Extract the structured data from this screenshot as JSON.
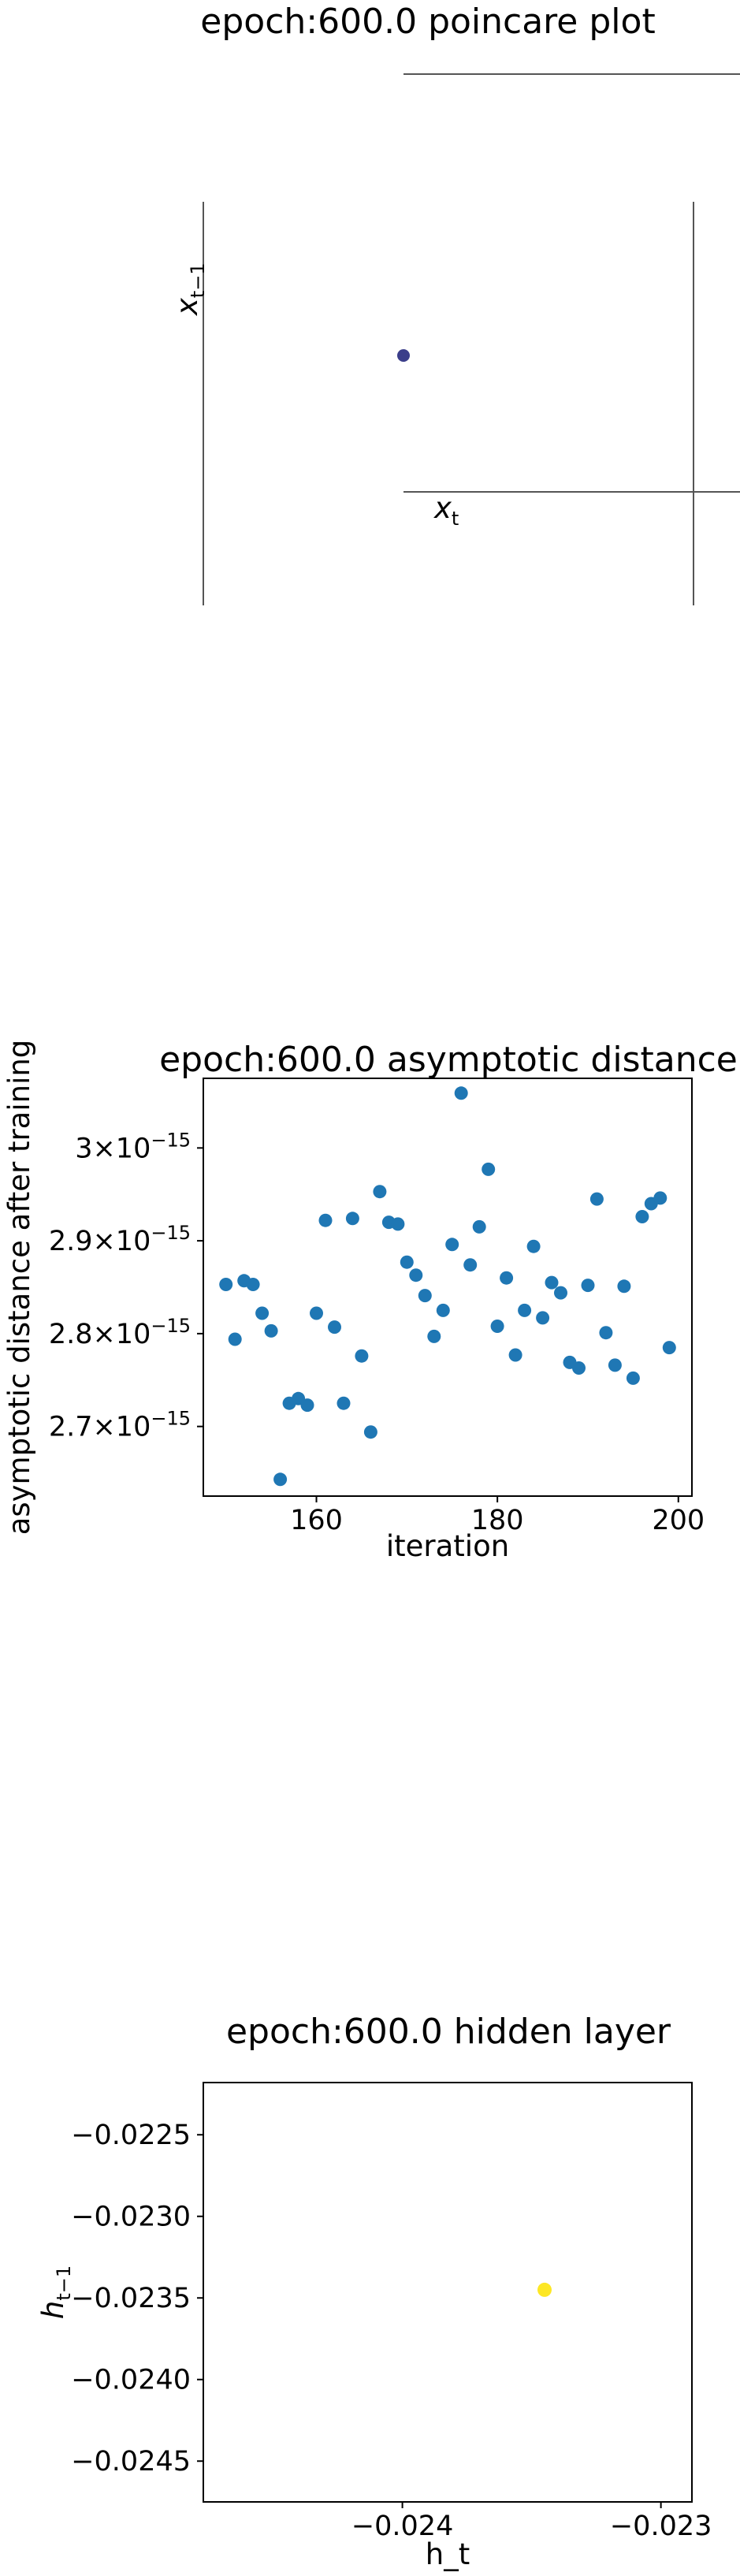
{
  "chart_data": [
    {
      "type": "scatter",
      "title": "epoch:600.0 poincare plot",
      "xlabel": "x",
      "xlabel_sub": "t",
      "ylabel": "x",
      "ylabel_sub": "t−1",
      "grid": false,
      "points": [
        {
          "x": 0,
          "y": 0,
          "color": "#3b3e8a"
        }
      ]
    },
    {
      "type": "scatter",
      "title": "epoch:600.0 asymptotic distance",
      "xlabel": "iteration",
      "ylabel": "asymptotic distance after training",
      "xlim": [
        147.5,
        201.5
      ],
      "ylim": [
        2.625e-15,
        3.075e-15
      ],
      "grid": false,
      "color": "#1f77b4",
      "xticks": [
        {
          "value": 160,
          "label": "160"
        },
        {
          "value": 180,
          "label": "180"
        },
        {
          "value": 200,
          "label": "200"
        }
      ],
      "yticks": [
        {
          "value": 2.7e-15,
          "label": "2.7",
          "exp": "−15"
        },
        {
          "value": 2.8e-15,
          "label": "2.8",
          "exp": "−15"
        },
        {
          "value": 2.9e-15,
          "label": "2.9",
          "exp": "−15"
        },
        {
          "value": 3e-15,
          "label": "3",
          "exp": "−15"
        }
      ],
      "x": [
        150,
        151,
        152,
        153,
        154,
        155,
        156,
        157,
        158,
        159,
        160,
        161,
        162,
        163,
        164,
        165,
        166,
        167,
        168,
        169,
        170,
        171,
        172,
        173,
        174,
        175,
        176,
        177,
        178,
        179,
        180,
        181,
        182,
        183,
        184,
        185,
        186,
        187,
        188,
        189,
        190,
        191,
        192,
        193,
        194,
        195,
        196,
        197,
        198,
        199
      ],
      "y": [
        2.853e-15,
        2.794e-15,
        2.857e-15,
        2.853e-15,
        2.822e-15,
        2.803e-15,
        2.643e-15,
        2.725e-15,
        2.73e-15,
        2.723e-15,
        2.822e-15,
        2.922e-15,
        2.807e-15,
        2.725e-15,
        2.924e-15,
        2.776e-15,
        2.694e-15,
        2.953e-15,
        2.92e-15,
        2.918e-15,
        2.877e-15,
        2.863e-15,
        2.841e-15,
        2.797e-15,
        2.825e-15,
        2.896e-15,
        3.059e-15,
        2.874e-15,
        2.915e-15,
        2.977e-15,
        2.808e-15,
        2.86e-15,
        2.777e-15,
        2.825e-15,
        2.894e-15,
        2.817e-15,
        2.855e-15,
        2.844e-15,
        2.769e-15,
        2.763e-15,
        2.852e-15,
        2.945e-15,
        2.801e-15,
        2.766e-15,
        2.851e-15,
        2.752e-15,
        2.926e-15,
        2.94e-15,
        2.946e-15,
        2.785e-15
      ]
    },
    {
      "type": "scatter",
      "title": "epoch:600.0 hidden layer",
      "xlabel": "h_t",
      "ylabel": "h",
      "ylabel_sub": "t−1",
      "xlim": [
        -0.02477,
        -0.02288
      ],
      "ylim": [
        -0.02475,
        -0.02218
      ],
      "grid": false,
      "xticks": [
        {
          "value": -0.024,
          "label": "−0.024"
        },
        {
          "value": -0.023,
          "label": "−0.023"
        }
      ],
      "yticks": [
        {
          "value": -0.0225,
          "label": "−0.0225"
        },
        {
          "value": -0.023,
          "label": "−0.0230"
        },
        {
          "value": -0.0235,
          "label": "−0.0235"
        },
        {
          "value": -0.024,
          "label": "−0.0240"
        },
        {
          "value": -0.0245,
          "label": "−0.0245"
        }
      ],
      "points": [
        {
          "x": -0.02345,
          "y": -0.02345,
          "color": "#fde725"
        }
      ]
    }
  ]
}
